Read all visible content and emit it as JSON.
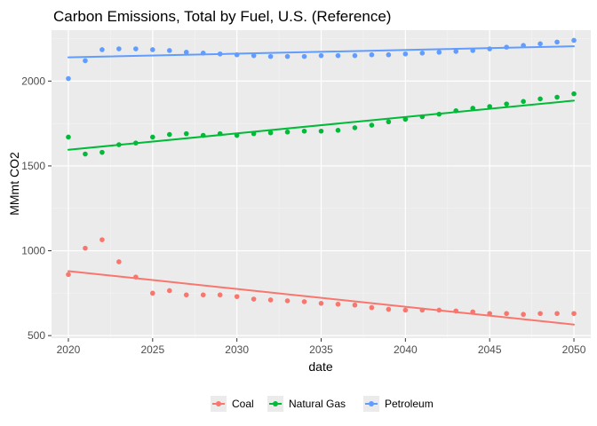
{
  "colors": {
    "panel_background": "#ebebeb",
    "grid_major": "#ffffff",
    "grid_minor": "#f4f4f4",
    "tick_text": "#4d4d4d",
    "coal": "#f8766d",
    "natural_gas": "#00ba38",
    "petroleum": "#619cff"
  },
  "chart_data": {
    "type": "scatter",
    "title": "Carbon Emissions, Total by Fuel, U.S. (Reference)",
    "xlabel": "date",
    "ylabel": "MMmt CO2",
    "x": [
      2020,
      2021,
      2022,
      2023,
      2024,
      2025,
      2026,
      2027,
      2028,
      2029,
      2030,
      2031,
      2032,
      2033,
      2034,
      2035,
      2036,
      2037,
      2038,
      2039,
      2040,
      2041,
      2042,
      2043,
      2044,
      2045,
      2046,
      2047,
      2048,
      2049,
      2050
    ],
    "xlim": [
      2019,
      2051
    ],
    "ylim": [
      485,
      2300
    ],
    "xticks": [
      2020,
      2025,
      2030,
      2035,
      2040,
      2045,
      2050
    ],
    "yticks": [
      500,
      1000,
      1500,
      2000
    ],
    "xtick_labels": [
      "2020",
      "2025",
      "2030",
      "2035",
      "2040",
      "2045",
      "2050"
    ],
    "ytick_labels": [
      "500",
      "1000",
      "1500",
      "2000"
    ],
    "grid": true,
    "legend_position": "bottom",
    "overlay": "linear trend line per series",
    "series": [
      {
        "name": "Coal",
        "color": "#f8766d",
        "values": [
          860,
          1015,
          1065,
          935,
          845,
          750,
          765,
          740,
          740,
          740,
          730,
          715,
          710,
          705,
          700,
          690,
          685,
          680,
          665,
          655,
          650,
          650,
          650,
          645,
          640,
          630,
          630,
          625,
          630,
          630,
          630
        ],
        "trend": [
          880,
          565
        ]
      },
      {
        "name": "Natural Gas",
        "color": "#00ba38",
        "values": [
          1670,
          1570,
          1580,
          1625,
          1635,
          1670,
          1685,
          1690,
          1680,
          1690,
          1680,
          1690,
          1695,
          1700,
          1705,
          1705,
          1710,
          1725,
          1740,
          1760,
          1775,
          1790,
          1805,
          1825,
          1840,
          1850,
          1865,
          1880,
          1895,
          1905,
          1925
        ],
        "trend": [
          1595,
          1885
        ]
      },
      {
        "name": "Petroleum",
        "color": "#619cff",
        "values": [
          2015,
          2120,
          2185,
          2190,
          2190,
          2185,
          2180,
          2170,
          2165,
          2160,
          2155,
          2150,
          2145,
          2145,
          2145,
          2150,
          2150,
          2150,
          2155,
          2155,
          2160,
          2165,
          2170,
          2175,
          2180,
          2190,
          2200,
          2210,
          2220,
          2230,
          2240
        ],
        "trend": [
          2140,
          2205
        ]
      }
    ]
  }
}
